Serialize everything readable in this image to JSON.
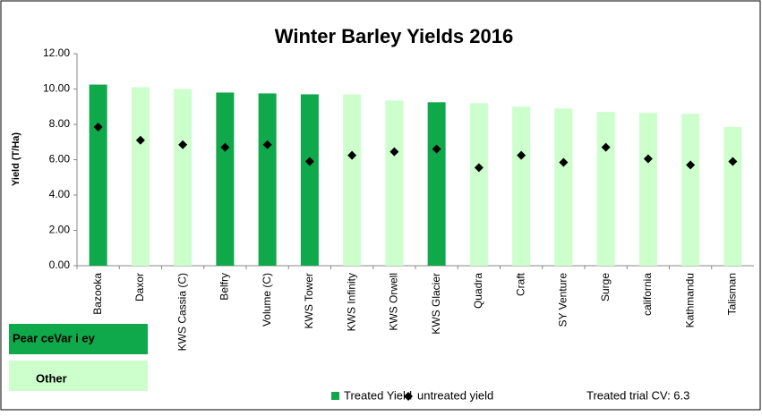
{
  "chart_data": {
    "type": "bar",
    "title": "Winter Barley Yields 2016",
    "y_label": "Yield (T/Ha)",
    "categories": [
      "Bazooka",
      "Daxor",
      "KWS Cassia (C)",
      "Belfry",
      "Volume (C)",
      "KWS Tower",
      "KWS Infinity",
      "KWS Orwell",
      "KWS Glacier",
      "Quadra",
      "Craft",
      "SY Venture",
      "Surge",
      "california",
      "Kathmandu",
      "Talisman"
    ],
    "series": [
      {
        "name": "Treated Yield",
        "type": "bar",
        "color": "#0fa84a",
        "colors": [
          "#0fa84a",
          "#ccffcc",
          "#ccffcc",
          "#0fa84a",
          "#0fa84a",
          "#0fa84a",
          "#ccffcc",
          "#ccffcc",
          "#0fa84a",
          "#ccffcc",
          "#ccffcc",
          "#ccffcc",
          "#ccffcc",
          "#ccffcc",
          "#ccffcc",
          "#ccffcc"
        ],
        "values": [
          10.25,
          10.1,
          10.0,
          9.8,
          9.75,
          9.7,
          9.7,
          9.35,
          9.25,
          9.2,
          9.0,
          8.9,
          8.7,
          8.65,
          8.6,
          7.85
        ]
      },
      {
        "name": "untreated yield",
        "type": "marker",
        "color": "#000000",
        "values": [
          7.85,
          7.1,
          6.85,
          6.7,
          6.85,
          5.9,
          6.25,
          6.45,
          6.6,
          5.55,
          6.25,
          5.85,
          6.7,
          6.05,
          5.7,
          5.9
        ]
      }
    ],
    "ylim": [
      0,
      12
    ],
    "yticks": [
      {
        "value": 0,
        "label": "0.00"
      },
      {
        "value": 2,
        "label": "2.00"
      },
      {
        "value": 4,
        "label": "4.00"
      },
      {
        "value": 6,
        "label": "6.00"
      },
      {
        "value": 8,
        "label": "8.00"
      },
      {
        "value": 10,
        "label": "10.00"
      },
      {
        "value": 12,
        "label": "12.00"
      }
    ],
    "grid": false,
    "color_key": [
      {
        "label": "Pear ceVar i ey",
        "color": "#0fa84a"
      },
      {
        "label": "Other",
        "color": "#ccffcc"
      }
    ],
    "annotation": "Treated trial CV: 6.3"
  }
}
